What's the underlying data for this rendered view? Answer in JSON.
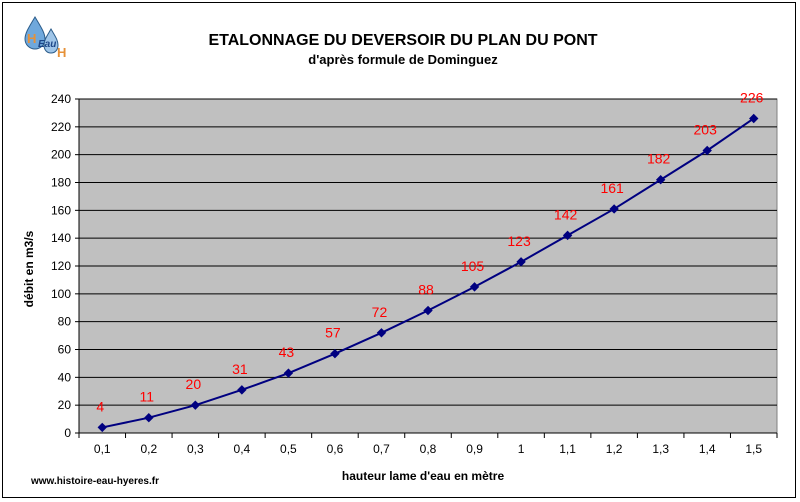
{
  "logo": {
    "text_h1": "H",
    "text_eau": "Eau",
    "text_h2": "H"
  },
  "footer": {
    "website": "www.histoire-eau-hyeres.fr"
  },
  "colors": {
    "plot_background": "#c0c0c0",
    "line": "#000080",
    "data_label": "#ff0000",
    "gridline": "#000000"
  },
  "chart_data": {
    "type": "line",
    "title": "ETALONNAGE DU DEVERSOIR DU PLAN DU PONT",
    "subtitle": "d'après formule de Dominguez",
    "xlabel": "hauteur lame d'eau en mètre",
    "ylabel": "débit en m3/s",
    "categories": [
      "0,1",
      "0,2",
      "0,3",
      "0,4",
      "0,5",
      "0,6",
      "0,7",
      "0,8",
      "0,9",
      "1",
      "1,1",
      "1,2",
      "1,3",
      "1,4",
      "1,5"
    ],
    "values": [
      4,
      11,
      20,
      31,
      43,
      57,
      72,
      88,
      105,
      123,
      142,
      161,
      182,
      203,
      226
    ],
    "ylim": [
      0,
      240
    ],
    "yticks": [
      "0",
      "20",
      "40",
      "60",
      "80",
      "100",
      "120",
      "140",
      "160",
      "180",
      "200",
      "220",
      "240"
    ],
    "grid": "horizontal",
    "legend": "none",
    "marker": "diamond"
  }
}
